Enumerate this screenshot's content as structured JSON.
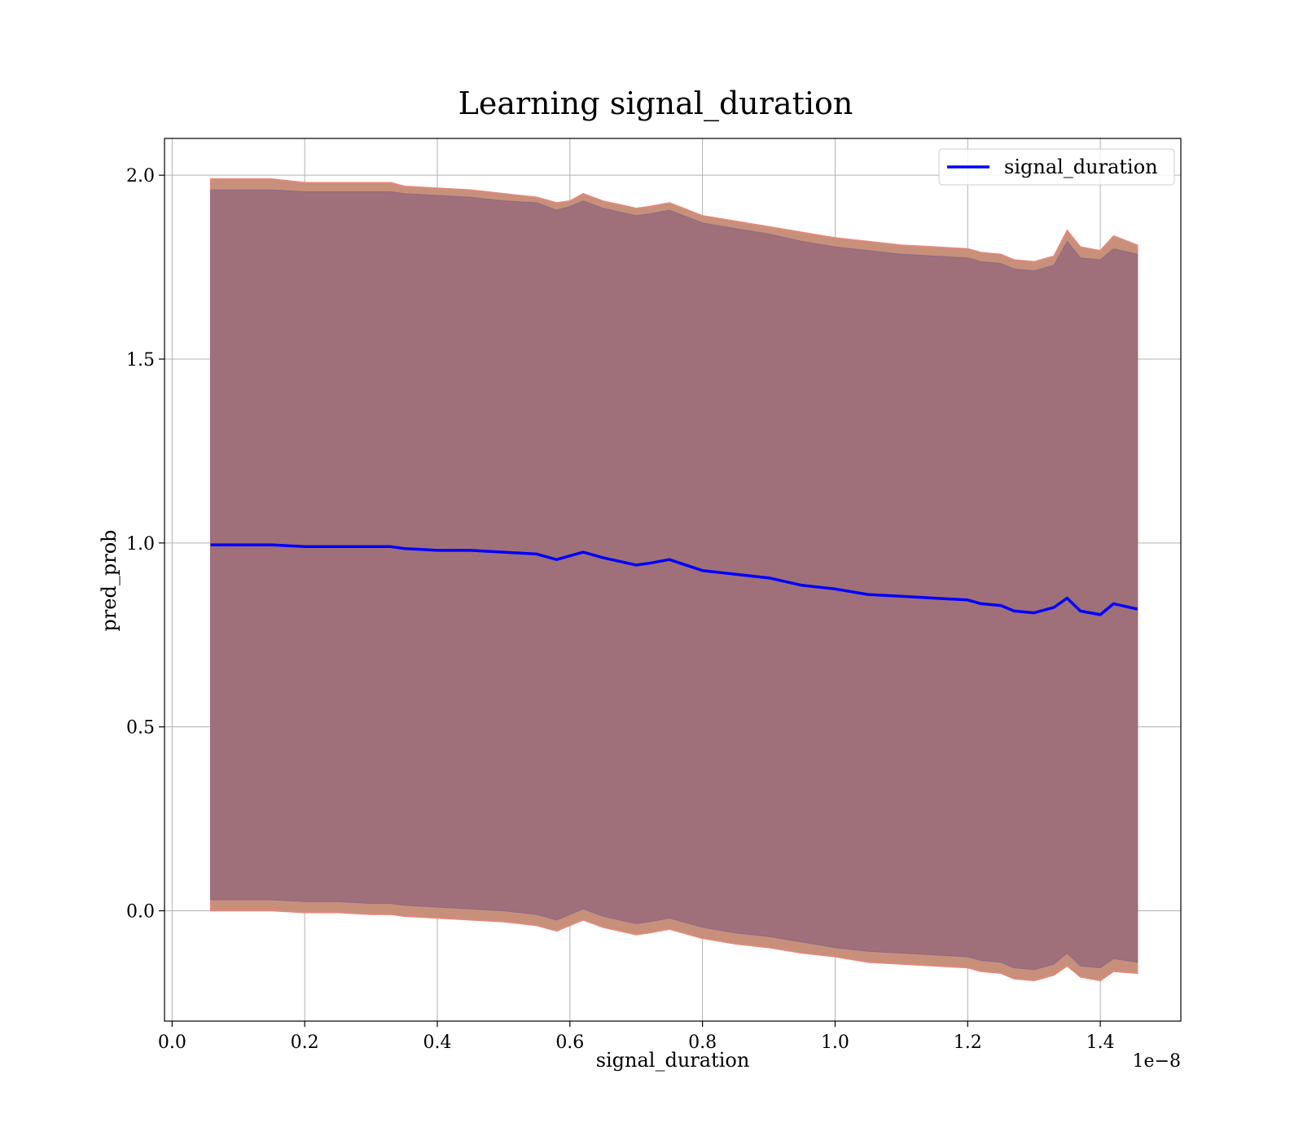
{
  "chart_data": {
    "type": "line",
    "title": "Learning signal_duration",
    "xlabel": "signal_duration",
    "ylabel": "pred_prob",
    "x_offset_text": "1e−8",
    "xlim": [
      -0.0115,
      1.5215
    ],
    "ylim": [
      -0.3,
      2.1
    ],
    "x_ticks": [
      0.0,
      0.2,
      0.4,
      0.6,
      0.8,
      1.0,
      1.2,
      1.4
    ],
    "x_tick_labels": [
      "0.0",
      "0.2",
      "0.4",
      "0.6",
      "0.8",
      "1.0",
      "1.2",
      "1.4"
    ],
    "y_ticks": [
      0.0,
      0.5,
      1.0,
      1.5,
      2.0
    ],
    "y_tick_labels": [
      "0.0",
      "0.5",
      "1.0",
      "1.5",
      "2.0"
    ],
    "grid": true,
    "legend_position": "top-right",
    "colors": {
      "line": "#0000ff",
      "outer_band": "#c8907a",
      "outer_band_edge": "#e8877c",
      "inner_band": "#a0707a",
      "grid": "#b0b0b0"
    },
    "series": [
      {
        "name": "signal_duration",
        "x": [
          0.058,
          0.1,
          0.15,
          0.2,
          0.25,
          0.3,
          0.33,
          0.35,
          0.4,
          0.45,
          0.5,
          0.55,
          0.58,
          0.6,
          0.62,
          0.65,
          0.7,
          0.72,
          0.75,
          0.8,
          0.85,
          0.9,
          0.95,
          1.0,
          1.05,
          1.1,
          1.15,
          1.2,
          1.22,
          1.25,
          1.27,
          1.3,
          1.33,
          1.35,
          1.37,
          1.4,
          1.42,
          1.456
        ],
        "values": [
          0.995,
          0.995,
          0.995,
          0.99,
          0.99,
          0.99,
          0.99,
          0.985,
          0.98,
          0.98,
          0.975,
          0.97,
          0.955,
          0.965,
          0.975,
          0.96,
          0.94,
          0.945,
          0.955,
          0.925,
          0.915,
          0.905,
          0.885,
          0.875,
          0.86,
          0.855,
          0.85,
          0.845,
          0.835,
          0.83,
          0.815,
          0.81,
          0.825,
          0.85,
          0.815,
          0.805,
          0.835,
          0.82
        ],
        "outer_upper": [
          1.99,
          1.99,
          1.99,
          1.98,
          1.98,
          1.98,
          1.98,
          1.97,
          1.965,
          1.96,
          1.95,
          1.94,
          1.925,
          1.93,
          1.95,
          1.93,
          1.91,
          1.915,
          1.925,
          1.89,
          1.875,
          1.86,
          1.845,
          1.83,
          1.82,
          1.81,
          1.805,
          1.8,
          1.79,
          1.785,
          1.77,
          1.765,
          1.78,
          1.85,
          1.805,
          1.795,
          1.835,
          1.81
        ],
        "outer_lower": [
          0.0,
          0.0,
          0.0,
          -0.005,
          -0.005,
          -0.01,
          -0.01,
          -0.015,
          -0.02,
          -0.025,
          -0.03,
          -0.04,
          -0.055,
          -0.04,
          -0.025,
          -0.045,
          -0.065,
          -0.06,
          -0.05,
          -0.075,
          -0.09,
          -0.1,
          -0.115,
          -0.125,
          -0.14,
          -0.145,
          -0.15,
          -0.155,
          -0.165,
          -0.17,
          -0.185,
          -0.19,
          -0.175,
          -0.15,
          -0.18,
          -0.19,
          -0.165,
          -0.17
        ],
        "inner_upper": [
          1.96,
          1.96,
          1.96,
          1.955,
          1.955,
          1.955,
          1.955,
          1.95,
          1.945,
          1.94,
          1.93,
          1.925,
          1.905,
          1.915,
          1.93,
          1.91,
          1.89,
          1.895,
          1.905,
          1.87,
          1.855,
          1.84,
          1.82,
          1.805,
          1.795,
          1.785,
          1.78,
          1.775,
          1.765,
          1.76,
          1.745,
          1.74,
          1.755,
          1.82,
          1.775,
          1.77,
          1.8,
          1.785
        ],
        "inner_lower": [
          0.03,
          0.03,
          0.03,
          0.025,
          0.025,
          0.02,
          0.02,
          0.015,
          0.01,
          0.005,
          0.0,
          -0.01,
          -0.025,
          -0.01,
          0.005,
          -0.015,
          -0.035,
          -0.03,
          -0.02,
          -0.045,
          -0.06,
          -0.07,
          -0.085,
          -0.1,
          -0.11,
          -0.115,
          -0.12,
          -0.125,
          -0.135,
          -0.14,
          -0.155,
          -0.16,
          -0.145,
          -0.115,
          -0.15,
          -0.155,
          -0.13,
          -0.14
        ]
      }
    ]
  }
}
